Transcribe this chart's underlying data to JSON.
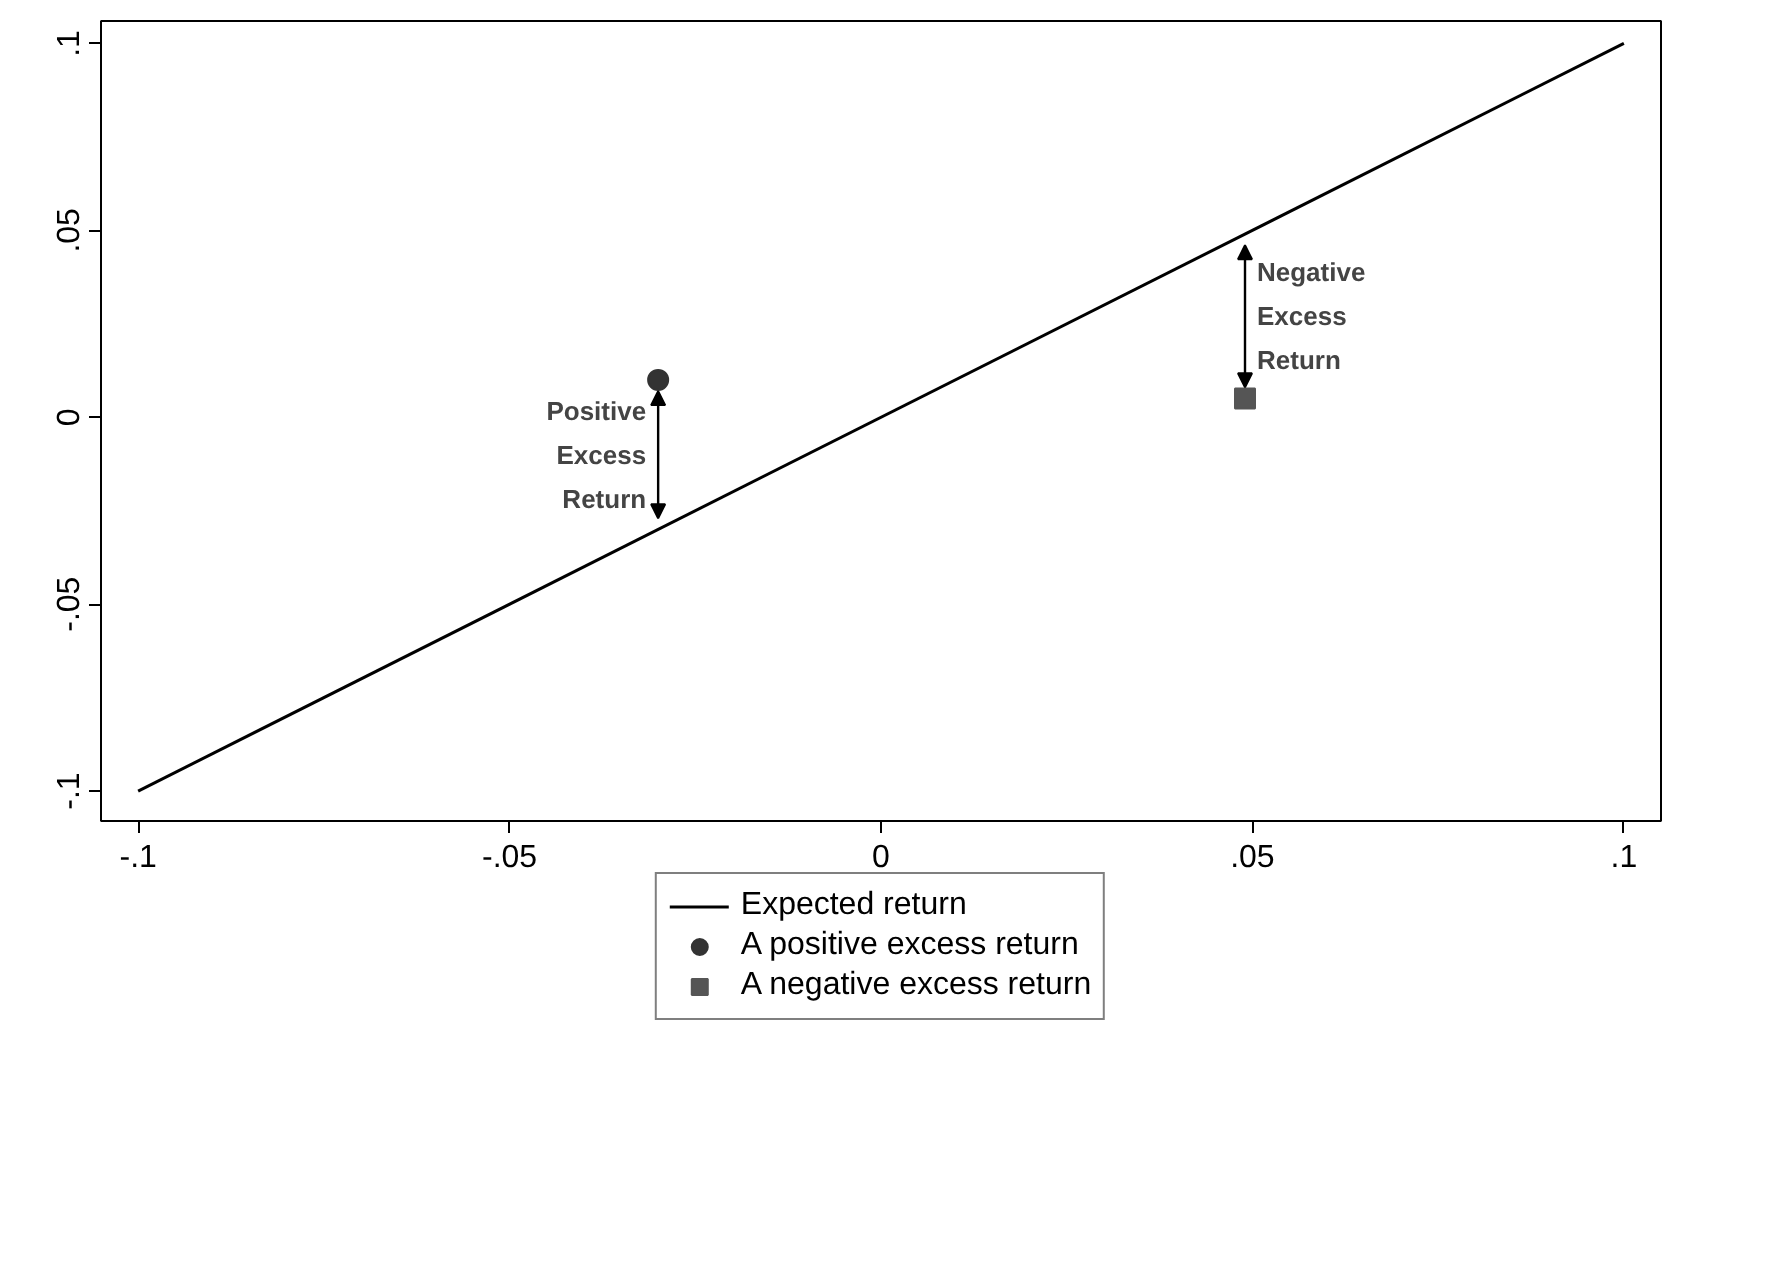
{
  "chart_data": {
    "type": "line",
    "series": [
      {
        "name": "Expected return",
        "color": "#000000",
        "x": [
          -0.1,
          0.1
        ],
        "values": [
          -0.1,
          0.1
        ],
        "marker": "none"
      },
      {
        "name": "A positive excess return",
        "type": "scatter",
        "color": "#333333",
        "x": [
          -0.03
        ],
        "values": [
          0.01
        ],
        "marker": "circle"
      },
      {
        "name": "A negative excess return",
        "type": "scatter",
        "color": "#555555",
        "x": [
          0.049
        ],
        "values": [
          0.005
        ],
        "marker": "square"
      }
    ],
    "annotations": [
      "Positive\nExcess\nReturn",
      "Negative\nExcess\nReturn"
    ],
    "xlim": [
      -0.105,
      0.105
    ],
    "ylim": [
      -0.108,
      0.106
    ],
    "xticks": [
      {
        "value": -0.1,
        "label": "-.1"
      },
      {
        "value": -0.05,
        "label": "-.05"
      },
      0,
      {
        "value": 0.05,
        "label": ".05"
      },
      {
        "value": 0.1,
        "label": ".1"
      }
    ],
    "yticks": [
      {
        "value": -0.1,
        "label": "-.1"
      },
      {
        "value": -0.05,
        "label": "-.05"
      },
      0,
      {
        "value": 0.05,
        "label": ".05"
      },
      {
        "value": 0.1,
        "label": ".1"
      }
    ],
    "grid": false,
    "legend": "bottom"
  }
}
